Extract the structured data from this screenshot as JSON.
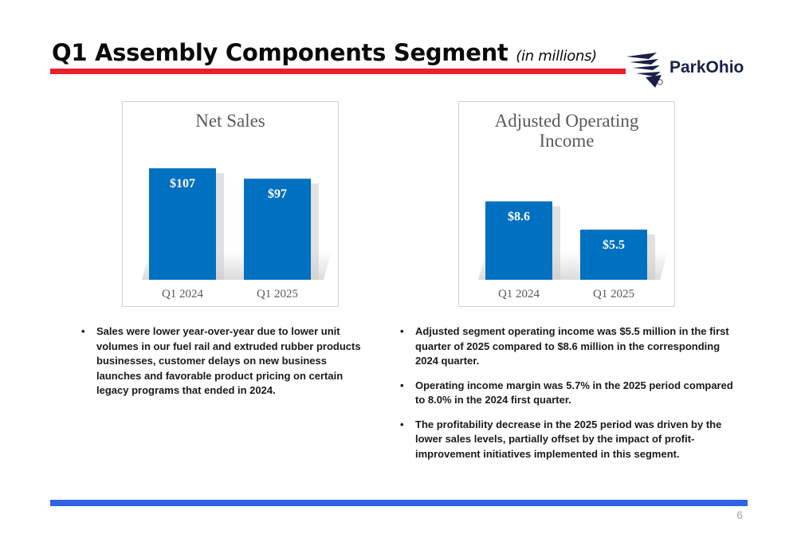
{
  "slide": {
    "title": "Q1 Assembly Components Segment",
    "subtitle": "(in millions)",
    "brand": "ParkOhio",
    "page_number": "6",
    "colors": {
      "accent_red": "#e8202a",
      "bar_blue": "#0070c0",
      "rule_blue": "#2f63e5"
    }
  },
  "chart_data": [
    {
      "type": "bar",
      "title": [
        "Net Sales"
      ],
      "categories": [
        "Q1 2024",
        "Q1 2025"
      ],
      "values": [
        107,
        97
      ],
      "labels": [
        "$107",
        "$97"
      ],
      "ylim": [
        0,
        140
      ],
      "grid": false,
      "unit": "$ millions"
    },
    {
      "type": "bar",
      "title": [
        "Adjusted Operating",
        "Income"
      ],
      "categories": [
        "Q1 2024",
        "Q1 2025"
      ],
      "values": [
        8.6,
        5.5
      ],
      "labels": [
        "$8.6",
        "$5.5"
      ],
      "ylim": [
        0,
        16
      ],
      "grid": false,
      "unit": "$ millions"
    }
  ],
  "bullets_left": [
    "Sales were lower year-over-year due to lower unit volumes in our fuel rail and extruded rubber products businesses, customer delays on new business launches and favorable product pricing on certain legacy programs that ended in 2024."
  ],
  "bullets_right": [
    "Adjusted segment operating income was $5.5 million in the first quarter of 2025 compared to $8.6 million in the corresponding 2024 quarter.",
    "Operating income margin was 5.7% in the 2025 period compared to 8.0% in the 2024 first quarter.",
    "The profitability decrease in the 2025 period was driven by the lower sales levels, partially offset by the impact of profit-improvement initiatives implemented in this segment."
  ]
}
